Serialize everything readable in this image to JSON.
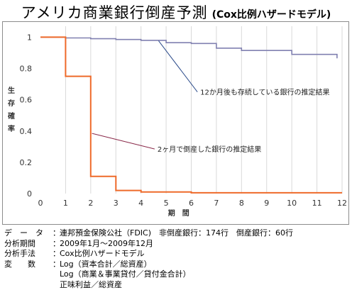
{
  "title": {
    "main": "アメリカ商業銀行倒産予測",
    "sub": "(Cox比例ハザードモデル)"
  },
  "chart_data": {
    "type": "line",
    "xlabel": "期　間",
    "ylabel": "生存確率",
    "xlim": [
      0,
      12
    ],
    "ylim": [
      0,
      1.07
    ],
    "xticks": [
      0,
      1,
      2,
      3,
      4,
      5,
      6,
      7,
      8,
      9,
      10,
      11,
      12
    ],
    "yticks": [
      0,
      0.2,
      0.4,
      0.6,
      0.8,
      1
    ],
    "grid": "vertical",
    "series": [
      {
        "color": "#8080b0",
        "points": [
          [
            0,
            1
          ],
          [
            1,
            1
          ],
          [
            1,
            0.995
          ],
          [
            2,
            0.995
          ],
          [
            2,
            0.99
          ],
          [
            3,
            0.99
          ],
          [
            3,
            0.985
          ],
          [
            4,
            0.985
          ],
          [
            4,
            0.98
          ],
          [
            5,
            0.98
          ],
          [
            5,
            0.965
          ],
          [
            6,
            0.965
          ],
          [
            6,
            0.96
          ],
          [
            7,
            0.96
          ],
          [
            7,
            0.93
          ],
          [
            8,
            0.93
          ],
          [
            8,
            0.915
          ],
          [
            10,
            0.915
          ],
          [
            10,
            0.89
          ],
          [
            11.8,
            0.89
          ],
          [
            11.8,
            0.865
          ]
        ]
      },
      {
        "color": "#ee6a2a",
        "points": [
          [
            0,
            1
          ],
          [
            1,
            1
          ],
          [
            1,
            0.75
          ],
          [
            2,
            0.75
          ],
          [
            2,
            0.11
          ],
          [
            3,
            0.11
          ],
          [
            3,
            0.02
          ],
          [
            4,
            0.02
          ],
          [
            4,
            0.01
          ],
          [
            6,
            0.01
          ],
          [
            6,
            0.005
          ],
          [
            12,
            0.005
          ]
        ]
      }
    ],
    "annotations": [
      {
        "text": "12か月後も存続している銀行の推定結果",
        "point": [
          4.7,
          0.977
        ],
        "label_at": [
          6.3,
          0.65
        ],
        "color": "#2a4a8a"
      },
      {
        "text": "2ヶ月で倒産した銀行の推定結果",
        "point": [
          2.05,
          0.385
        ],
        "label_at": [
          4.6,
          0.285
        ],
        "color": "#8a2a4a"
      }
    ]
  },
  "notes": [
    {
      "key": "デ　ー　タ",
      "sep": "：",
      "value": "連邦預金保険公社（FDIC)　非倒産銀行：174行　倒産銀行：60行"
    },
    {
      "key": "分析期間",
      "sep": "：",
      "value": "2009年1月～2009年12月"
    },
    {
      "key": "分析手法",
      "sep": "：",
      "value": "Cox比例ハザードモデル"
    },
    {
      "key": "変　　数",
      "sep": "：",
      "value": "Log（資本合計／総資産）"
    }
  ],
  "notes_cont": [
    "Log（商業＆事業貸付／貸付金合計）",
    "正味利益／総資産"
  ]
}
